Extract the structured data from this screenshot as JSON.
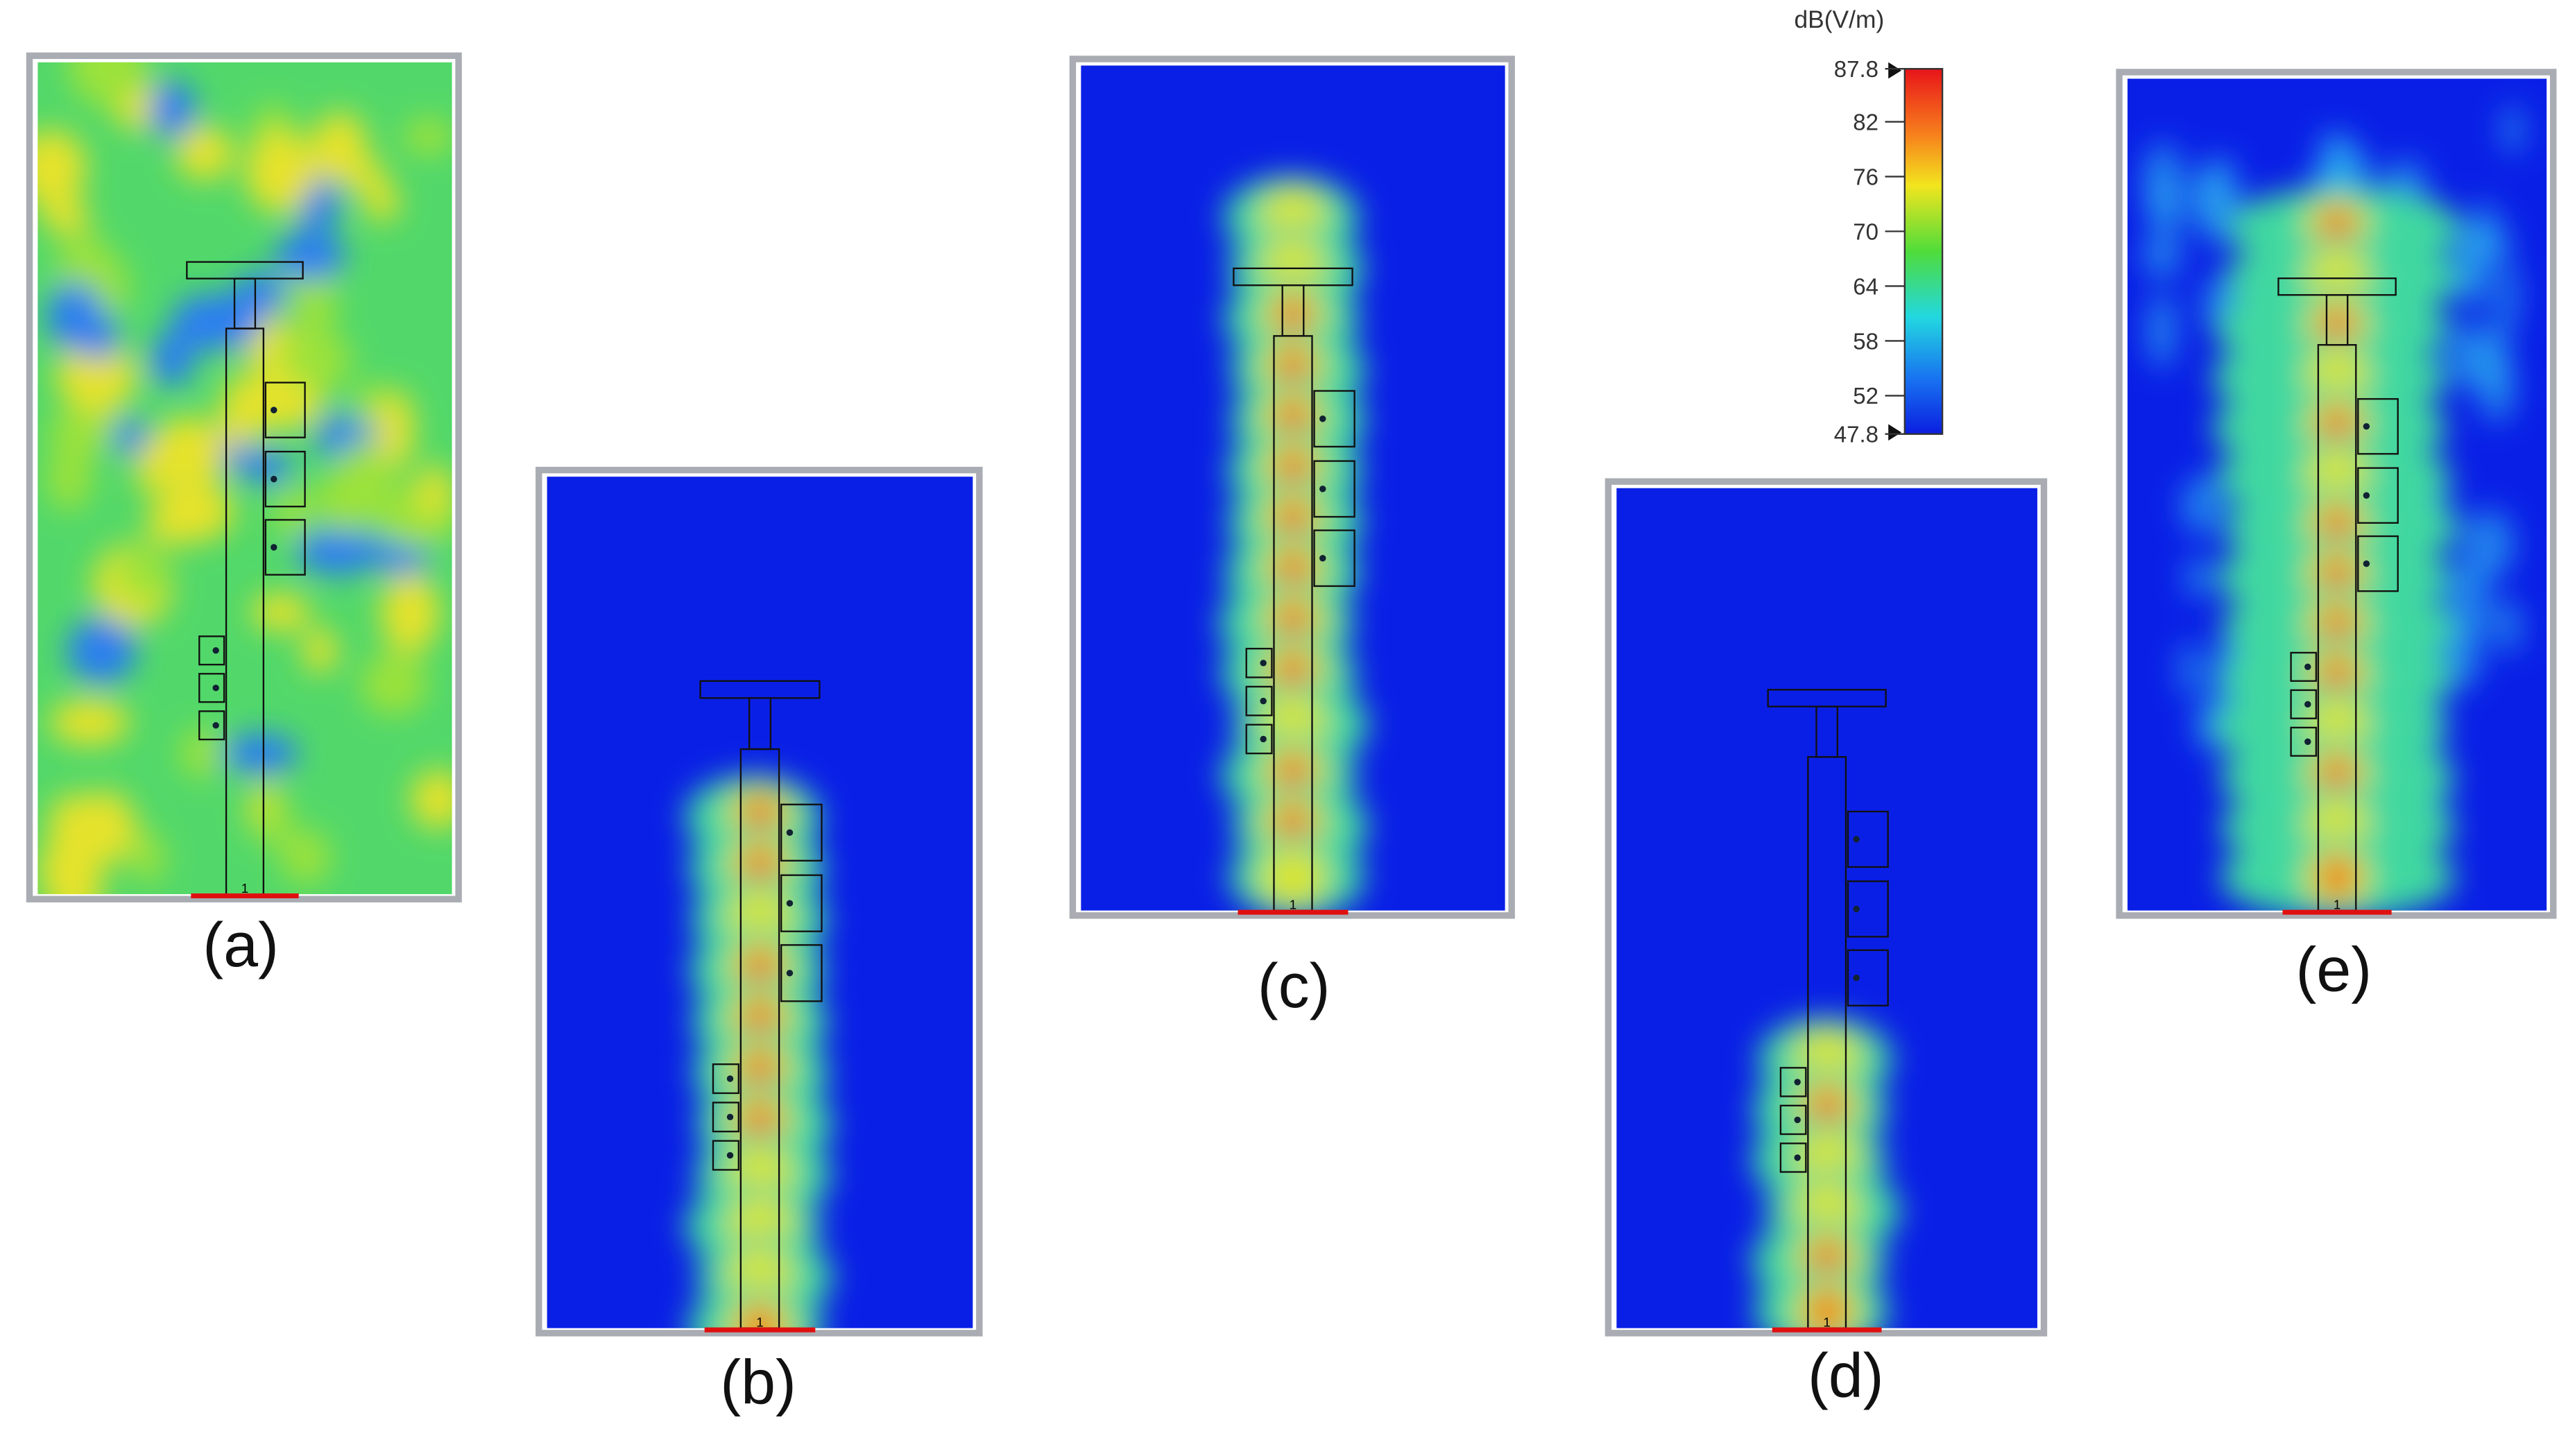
{
  "panels": [
    {
      "label": "(a)",
      "port": "1"
    },
    {
      "label": "(b)",
      "port": "1"
    },
    {
      "label": "(c)",
      "port": "1"
    },
    {
      "label": "(d)",
      "port": "1"
    },
    {
      "label": "(e)",
      "port": "1"
    }
  ],
  "colorbar": {
    "title": "dB(V/m)",
    "range": [
      47.8,
      87.8
    ],
    "ticks": [
      87.8,
      82,
      76,
      70,
      64,
      58,
      52,
      47.8
    ]
  }
}
